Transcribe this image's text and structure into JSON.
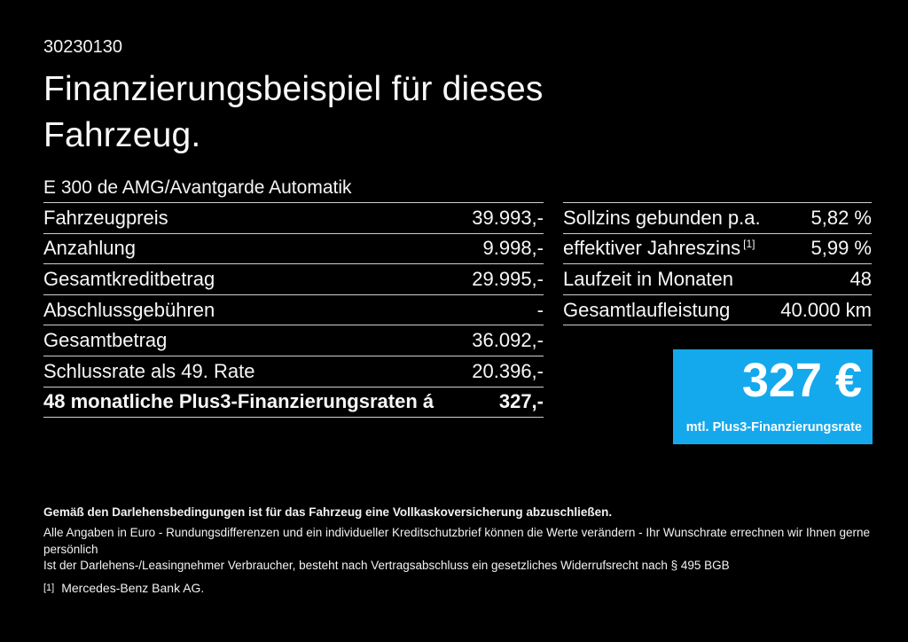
{
  "document": {
    "number": "30230130",
    "title_line1": "Finanzierungsbeispiel für dieses",
    "title_line2": "Fahrzeug.",
    "vehicle_model": "E 300 de AMG/Avantgarde Automatik"
  },
  "finance_table": {
    "rows": [
      {
        "label": "Fahrzeugpreis",
        "value": "39.993,-"
      },
      {
        "label": "Anzahlung",
        "value": "9.998,-"
      },
      {
        "label": "Gesamtkreditbetrag",
        "value": "29.995,-"
      },
      {
        "label": "Abschlussgebühren",
        "value": "-"
      },
      {
        "label": "Gesamtbetrag",
        "value": "36.092,-"
      },
      {
        "label": "Schlussrate als 49. Rate",
        "value": "20.396,-"
      },
      {
        "label": "48 monatliche Plus3-Finanzierungsraten á",
        "value": "327,-"
      }
    ]
  },
  "conditions_table": {
    "rows": [
      {
        "label": "Sollzins gebunden p.a.",
        "value": "5,82 %"
      },
      {
        "label": "effektiver Jahreszins",
        "footnote_marker": "[1]",
        "value": "5,99 %"
      },
      {
        "label": "Laufzeit in Monaten",
        "value": "48"
      },
      {
        "label": "Gesamtlaufleistung",
        "value": "40.000 km"
      }
    ]
  },
  "rate_box": {
    "amount": "327 €",
    "caption": "mtl. Plus3-Finanzierungsrate",
    "background_color": "#14a9ec"
  },
  "footnotes": {
    "insurance_notice": "Gemäß den Darlehensbedingungen ist für das Fahrzeug eine Vollkaskoversicherung abzuschließen.",
    "disclaimer_line1": "Alle Angaben in Euro - Rundungsdifferenzen und ein individueller Kreditschutzbrief können die Werte verändern - Ihr Wunschrate errechnen wir Ihnen gerne persönlich",
    "disclaimer_line2": "Ist der Darlehens-/Leasingnehmer Verbraucher, besteht nach Vertragsabschluss ein gesetzliches Widerrufsrecht nach § 495 BGB",
    "reference_marker": "[1]",
    "reference_text": "Mercedes-Benz Bank AG."
  }
}
